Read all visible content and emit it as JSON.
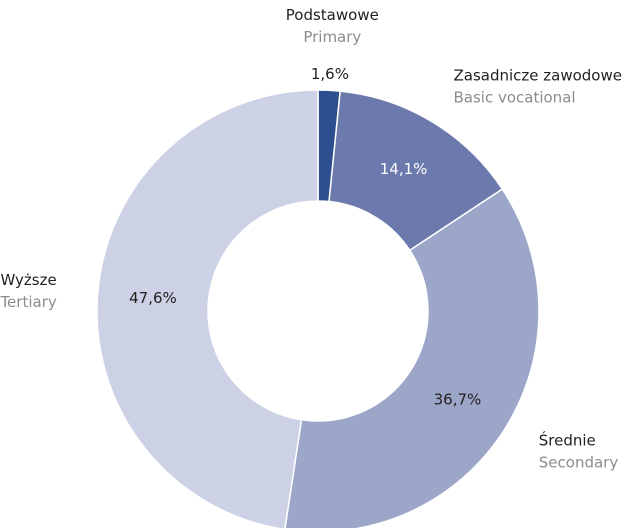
{
  "chart_data": {
    "type": "donut",
    "categories": [
      "Podstawowe",
      "Zasadnicze zawodowe",
      "Średnie",
      "Wyższe"
    ],
    "subtitles": [
      "Primary",
      "Basic vocational",
      "Secondary",
      "Tertiary"
    ],
    "values": [
      1.6,
      14.1,
      36.7,
      47.6
    ],
    "value_labels": [
      "1,6%",
      "14,1%",
      "36,7%",
      "47,6%"
    ],
    "colors": [
      "#2e4f8f",
      "#6b79ad",
      "#9ba6c8",
      "#cdd1e5"
    ]
  }
}
